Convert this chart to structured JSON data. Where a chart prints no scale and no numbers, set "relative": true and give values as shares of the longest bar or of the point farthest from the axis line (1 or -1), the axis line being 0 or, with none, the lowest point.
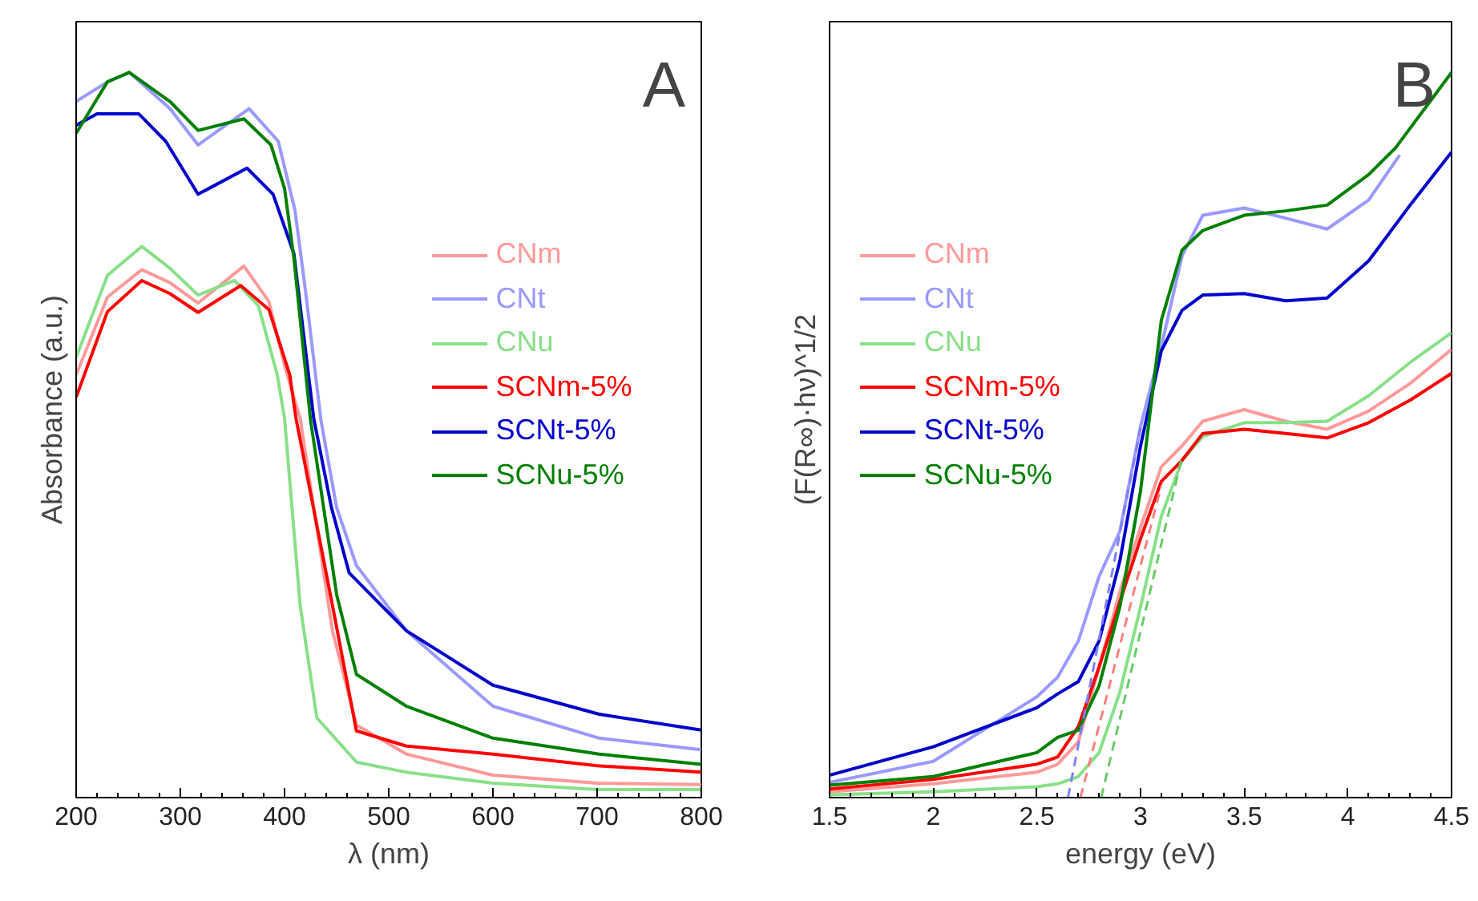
{
  "chart_data": [
    {
      "type": "line",
      "relative": true,
      "xlabel": "λ (nm)",
      "ylabel": "Absorbance (a.u.)",
      "annotations": [
        "A"
      ],
      "xlim": [
        200,
        800
      ],
      "xticks": [
        200,
        300,
        400,
        500,
        600,
        700,
        800
      ],
      "legend": "right",
      "series": [
        {
          "name": "CNm",
          "color": "#ff9999",
          "x": [
            200,
            230,
            263,
            290,
            317,
            361,
            385,
            400,
            415,
            446,
            469,
            517,
            600,
            700,
            800
          ],
          "values": [
            0.583,
            0.69,
            0.728,
            0.71,
            0.682,
            0.733,
            0.684,
            0.596,
            0.523,
            0.23,
            0.1,
            0.06,
            0.031,
            0.02,
            0.018
          ]
        },
        {
          "name": "CNt",
          "color": "#9999ff",
          "x": [
            200,
            230,
            251,
            290,
            317,
            366,
            394,
            410,
            420,
            435,
            450,
            469,
            517,
            600,
            702,
            800
          ],
          "values": [
            0.96,
            0.987,
            1.0,
            0.95,
            0.9,
            0.95,
            0.905,
            0.81,
            0.7,
            0.52,
            0.4,
            0.32,
            0.23,
            0.126,
            0.082,
            0.066
          ]
        },
        {
          "name": "CNu",
          "color": "#88e088",
          "x": [
            200,
            230,
            263,
            290,
            317,
            352,
            375,
            393,
            400,
            415,
            431,
            469,
            517,
            600,
            700,
            800
          ],
          "values": [
            0.607,
            0.72,
            0.76,
            0.73,
            0.693,
            0.713,
            0.678,
            0.583,
            0.523,
            0.265,
            0.11,
            0.049,
            0.035,
            0.02,
            0.011,
            0.011
          ]
        },
        {
          "name": "SCNm-5%",
          "color": "#ff0000",
          "x": [
            200,
            230,
            263,
            290,
            317,
            358,
            385,
            405,
            411,
            446,
            469,
            517,
            600,
            700,
            800
          ],
          "values": [
            0.552,
            0.67,
            0.713,
            0.695,
            0.669,
            0.706,
            0.673,
            0.583,
            0.523,
            0.265,
            0.092,
            0.071,
            0.06,
            0.044,
            0.035
          ]
        },
        {
          "name": "SCNt-5%",
          "color": "#0000cc",
          "x": [
            200,
            220,
            260,
            286,
            317,
            364,
            389,
            409,
            428,
            445,
            462,
            517,
            600,
            702,
            800
          ],
          "values": [
            0.927,
            0.943,
            0.943,
            0.905,
            0.832,
            0.868,
            0.832,
            0.75,
            0.523,
            0.4,
            0.31,
            0.23,
            0.155,
            0.115,
            0.093
          ]
        },
        {
          "name": "SCNu-5%",
          "color": "#008000",
          "x": [
            200,
            230,
            251,
            290,
            317,
            361,
            387,
            400,
            409,
            425,
            450,
            469,
            517,
            600,
            702,
            800
          ],
          "values": [
            0.916,
            0.987,
            1.0,
            0.96,
            0.92,
            0.936,
            0.9,
            0.84,
            0.744,
            0.52,
            0.28,
            0.17,
            0.126,
            0.082,
            0.06,
            0.046
          ]
        }
      ]
    },
    {
      "type": "line",
      "relative": true,
      "xlabel": "energy (eV)",
      "ylabel": "(F(R∞)·hν)^1/2",
      "annotations": [
        "B"
      ],
      "xlim": [
        1.5,
        4.5
      ],
      "xticks": [
        1.5,
        2.0,
        2.5,
        3.0,
        3.5,
        4.0,
        4.5
      ],
      "legend": "left",
      "series": [
        {
          "name": "CNm",
          "color": "#ff9999",
          "x": [
            1.5,
            2.0,
            2.5,
            2.6,
            2.7,
            2.8,
            2.9,
            3.0,
            3.1,
            3.2,
            3.3,
            3.5,
            3.7,
            3.9,
            4.1,
            4.3,
            4.5
          ],
          "values": [
            0.008,
            0.019,
            0.035,
            0.046,
            0.077,
            0.18,
            0.284,
            0.373,
            0.456,
            0.485,
            0.519,
            0.535,
            0.519,
            0.508,
            0.533,
            0.571,
            0.618
          ]
        },
        {
          "name": "CNt",
          "color": "#9999ff",
          "x": [
            1.5,
            2.0,
            2.5,
            2.6,
            2.7,
            2.8,
            2.9,
            3.0,
            3.1,
            3.2,
            3.3,
            3.5,
            3.7,
            3.9,
            4.1,
            4.25
          ],
          "values": [
            0.021,
            0.05,
            0.139,
            0.166,
            0.216,
            0.305,
            0.367,
            0.512,
            0.622,
            0.747,
            0.803,
            0.813,
            0.799,
            0.784,
            0.824,
            0.886
          ]
        },
        {
          "name": "CNu",
          "color": "#88e088",
          "x": [
            1.5,
            2.0,
            2.5,
            2.6,
            2.7,
            2.8,
            2.9,
            3.0,
            3.1,
            3.2,
            3.3,
            3.5,
            3.7,
            3.9,
            4.1,
            4.3,
            4.5
          ],
          "values": [
            0.004,
            0.008,
            0.015,
            0.019,
            0.029,
            0.062,
            0.145,
            0.263,
            0.388,
            0.465,
            0.498,
            0.517,
            0.517,
            0.519,
            0.554,
            0.6,
            0.641
          ]
        },
        {
          "name": "SCNm-5%",
          "color": "#ff0000",
          "x": [
            1.5,
            2.0,
            2.5,
            2.6,
            2.7,
            2.8,
            2.9,
            3.0,
            3.1,
            3.2,
            3.3,
            3.5,
            3.7,
            3.9,
            4.1,
            4.3,
            4.5
          ],
          "values": [
            0.012,
            0.025,
            0.046,
            0.056,
            0.098,
            0.18,
            0.27,
            0.357,
            0.436,
            0.465,
            0.502,
            0.508,
            0.502,
            0.496,
            0.517,
            0.548,
            0.585
          ]
        },
        {
          "name": "SCNt-5%",
          "color": "#0000cc",
          "x": [
            1.5,
            2.0,
            2.5,
            2.6,
            2.7,
            2.8,
            2.9,
            3.0,
            3.1,
            3.2,
            3.3,
            3.5,
            3.7,
            3.9,
            4.1,
            4.3,
            4.5
          ],
          "values": [
            0.031,
            0.07,
            0.124,
            0.143,
            0.16,
            0.216,
            0.326,
            0.485,
            0.616,
            0.672,
            0.693,
            0.695,
            0.685,
            0.689,
            0.74,
            0.817,
            0.89
          ]
        },
        {
          "name": "SCNu-5%",
          "color": "#008000",
          "x": [
            1.5,
            2.0,
            2.5,
            2.6,
            2.7,
            2.8,
            2.9,
            3.0,
            3.1,
            3.2,
            3.3,
            3.5,
            3.7,
            3.9,
            4.1,
            4.23,
            4.5
          ],
          "values": [
            0.017,
            0.029,
            0.062,
            0.083,
            0.093,
            0.154,
            0.263,
            0.423,
            0.658,
            0.755,
            0.782,
            0.803,
            0.809,
            0.817,
            0.859,
            0.896,
            1.0
          ]
        },
        {
          "color": "#7f7fff",
          "line_style": "dashed",
          "x": [
            2.65,
            3.0
          ],
          "values": [
            0.0,
            0.51
          ]
        },
        {
          "color": "#ff7f7f",
          "line_style": "dashed",
          "x": [
            2.71,
            3.1
          ],
          "values": [
            0.0,
            0.43
          ]
        },
        {
          "color": "#66cc66",
          "line_style": "dashed",
          "x": [
            2.81,
            3.2
          ],
          "values": [
            0.0,
            0.47
          ]
        }
      ]
    }
  ]
}
